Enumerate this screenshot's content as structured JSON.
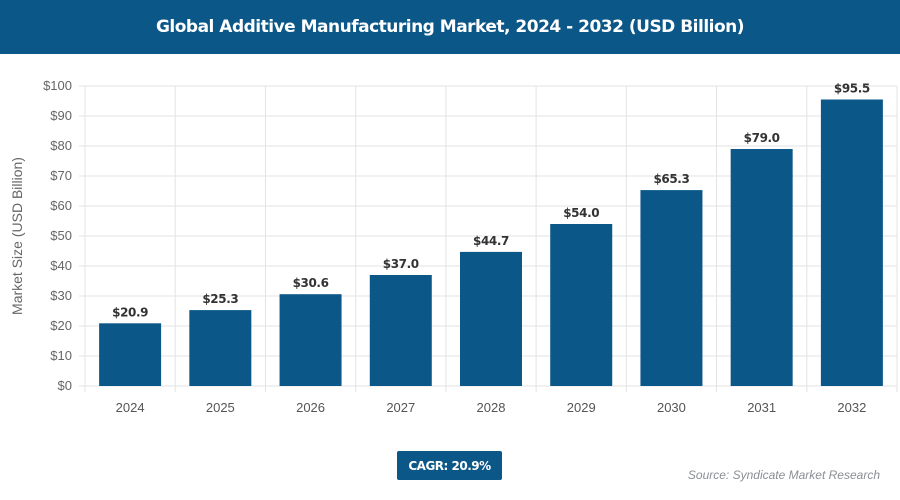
{
  "header": {
    "title": "Global Additive Manufacturing Market, 2024 - 2032 (USD Billion)"
  },
  "chart_data": {
    "type": "bar",
    "title": "Global Additive Manufacturing Market, 2024 - 2032 (USD Billion)",
    "categories": [
      "2024",
      "2025",
      "2026",
      "2027",
      "2028",
      "2029",
      "2030",
      "2031",
      "2032"
    ],
    "values": [
      20.9,
      25.3,
      30.6,
      37.0,
      44.7,
      54.0,
      65.3,
      79.0,
      95.5
    ],
    "data_labels": [
      "$20.9",
      "$25.3",
      "$30.6",
      "$37.0",
      "$44.7",
      "$54.0",
      "$65.3",
      "$79.0",
      "$95.5"
    ],
    "xlabel": "",
    "ylabel": "Market Size (USD Billion)",
    "ylim": [
      0,
      100
    ],
    "yticks": [
      "$0",
      "$10",
      "$20",
      "$30",
      "$40",
      "$50",
      "$60",
      "$70",
      "$80",
      "$90",
      "$100"
    ],
    "grid": true,
    "bar_color": "#0b5788"
  },
  "footer": {
    "cagr": "CAGR: 20.9%",
    "source": "Source: Syndicate Market Research"
  }
}
